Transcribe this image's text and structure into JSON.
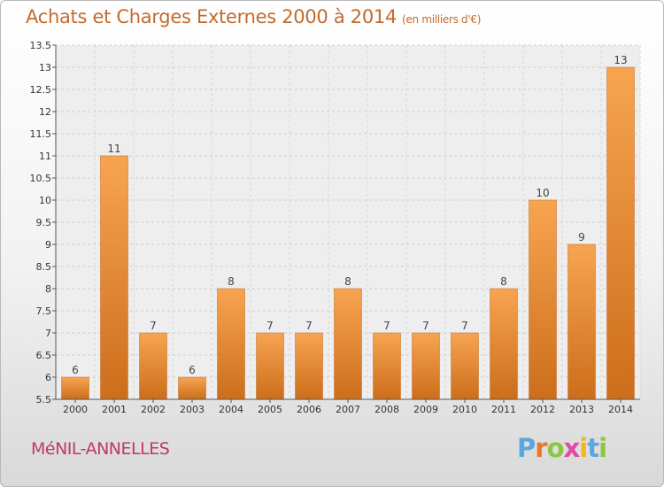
{
  "title": "Achats et Charges Externes 2000 à 2014",
  "subtitle": "(en milliers d'€)",
  "place": "MéNIL-ANNELLES",
  "brand": {
    "letters": [
      "P",
      "r",
      "o",
      "x",
      "i",
      "t",
      "i"
    ],
    "colors": [
      "#5aa7e0",
      "#e8792b",
      "#8cc63f",
      "#e14aa0",
      "#f2b51d",
      "#5aa7e0",
      "#8cc63f"
    ]
  },
  "colors": {
    "bar_top": "#f7a450",
    "bar_bottom": "#cc6e1c",
    "title": "#c46a2c",
    "place": "#c0386b"
  },
  "chart_data": {
    "type": "bar",
    "categories": [
      "2000",
      "2001",
      "2002",
      "2003",
      "2004",
      "2005",
      "2006",
      "2007",
      "2008",
      "2009",
      "2010",
      "2011",
      "2012",
      "2013",
      "2014"
    ],
    "values": [
      6,
      11,
      7,
      6,
      8,
      7,
      7,
      8,
      7,
      7,
      7,
      8,
      10,
      9,
      13
    ],
    "value_labels": [
      "6",
      "11",
      "7",
      "6",
      "8",
      "7",
      "7",
      "8",
      "7",
      "7",
      "7",
      "8",
      "10",
      "9",
      "13"
    ],
    "ylim": [
      5.5,
      13.5
    ],
    "yticks": [
      5.5,
      6,
      6.5,
      7,
      7.5,
      8,
      8.5,
      9,
      9.5,
      10,
      10.5,
      11,
      11.5,
      12,
      12.5,
      13,
      13.5
    ],
    "ytick_labels": [
      "5.5",
      "6",
      "6.5",
      "7",
      "7.5",
      "8",
      "8.5",
      "9",
      "9.5",
      "10",
      "10.5",
      "11",
      "11.5",
      "12",
      "12.5",
      "13",
      "13.5"
    ],
    "grid": true,
    "xlabel": "",
    "ylabel": ""
  }
}
